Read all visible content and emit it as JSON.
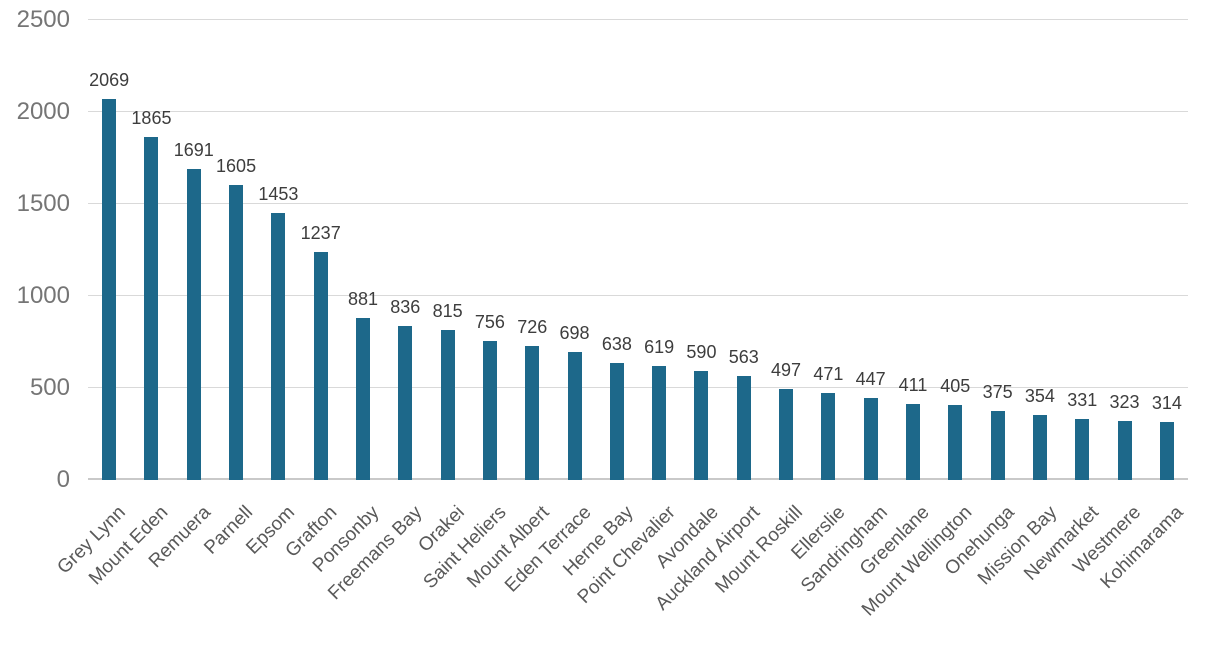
{
  "chart_data": {
    "type": "bar",
    "title": "",
    "xlabel": "",
    "ylabel": "",
    "categories": [
      "Grey Lynn",
      "Mount Eden",
      "Remuera",
      "Parnell",
      "Epsom",
      "Grafton",
      "Ponsonby",
      "Freemans Bay",
      "Orakei",
      "Saint Heliers",
      "Mount Albert",
      "Eden Terrace",
      "Herne Bay",
      "Point Chevalier",
      "Avondale",
      "Auckland Airport",
      "Mount Roskill",
      "Ellerslie",
      "Sandringham",
      "Greenlane",
      "Mount Wellington",
      "Onehunga",
      "Mission Bay",
      "Newmarket",
      "Westmere",
      "Kohimarama"
    ],
    "values": [
      2069,
      1865,
      1691,
      1605,
      1453,
      1237,
      881,
      836,
      815,
      756,
      726,
      698,
      638,
      619,
      590,
      563,
      497,
      471,
      447,
      411,
      405,
      375,
      354,
      331,
      323,
      314
    ],
    "ylim": [
      0,
      2500
    ],
    "yticks": [
      0,
      500,
      1000,
      1500,
      2000,
      2500
    ],
    "grid": true,
    "legend": false,
    "data_labels": true,
    "colors": {
      "bar": "#1d688a",
      "gridline": "#d9d9d9",
      "value_label": "#3d3d3d",
      "tick_label": "#757575",
      "category_label": "#595959"
    }
  }
}
